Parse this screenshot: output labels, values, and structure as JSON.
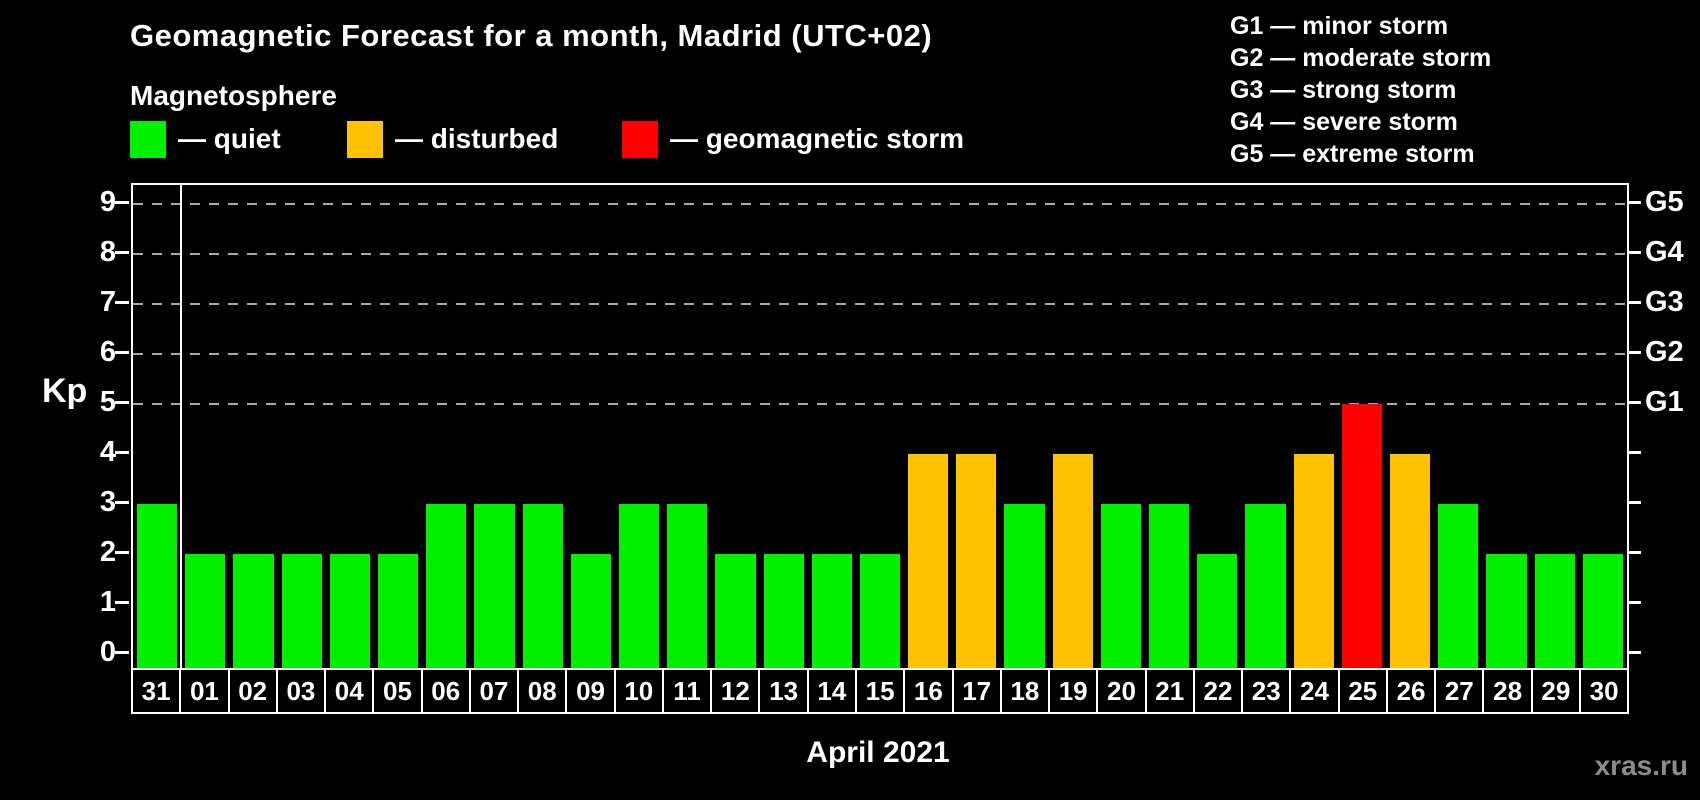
{
  "title": "Geomagnetic Forecast for a month, Madrid (UTC+02)",
  "subtitle": "Magnetosphere",
  "legend": {
    "items": [
      {
        "key": "quiet",
        "label": "— quiet",
        "color": "#00f000"
      },
      {
        "key": "disturbed",
        "label": "— disturbed",
        "color": "#ffc200"
      },
      {
        "key": "storm",
        "label": "— geomagnetic storm",
        "color": "#ff0000"
      }
    ]
  },
  "g_scale_legend": [
    "G1 — minor storm",
    "G2 — moderate storm",
    "G3 — strong storm",
    "G4 — severe storm",
    "G5 — extreme storm"
  ],
  "watermark": "xras.ru",
  "colors": {
    "quiet": "#00f000",
    "disturbed": "#ffc200",
    "storm": "#ff0000",
    "axis": "#ffffff",
    "grid": "#a8a8a8",
    "background": "#000000",
    "watermark": "#8c8c8c"
  },
  "chart_data": {
    "type": "bar",
    "title": "Geomagnetic Forecast for a month, Madrid (UTC+02)",
    "xlabel": "April 2021",
    "ylabel": "Kp",
    "ylim": [
      -0.32,
      9.38
    ],
    "yticks": [
      0,
      1,
      2,
      3,
      4,
      5,
      6,
      7,
      8,
      9
    ],
    "gridlines": [
      5,
      6,
      7,
      8,
      9
    ],
    "grid_style": "dashed",
    "legend_position": "top",
    "right_axis": [
      {
        "kp": 5,
        "label": "G1"
      },
      {
        "kp": 6,
        "label": "G2"
      },
      {
        "kp": 7,
        "label": "G3"
      },
      {
        "kp": 8,
        "label": "G4"
      },
      {
        "kp": 9,
        "label": "G5"
      }
    ],
    "categories": [
      "31",
      "01",
      "02",
      "03",
      "04",
      "05",
      "06",
      "07",
      "08",
      "09",
      "10",
      "11",
      "12",
      "13",
      "14",
      "15",
      "16",
      "17",
      "18",
      "19",
      "20",
      "21",
      "22",
      "23",
      "24",
      "25",
      "26",
      "27",
      "28",
      "29",
      "30"
    ],
    "values": [
      3,
      2,
      2,
      2,
      2,
      2,
      3,
      3,
      3,
      2,
      3,
      3,
      2,
      2,
      2,
      2,
      4,
      4,
      3,
      4,
      3,
      3,
      2,
      3,
      4,
      5,
      4,
      3,
      2,
      2,
      2
    ],
    "separator_after_index": 0,
    "color_rules": {
      "storm_min_kp": 5,
      "disturbed_kp": 4,
      "quiet_max_kp": 3
    }
  }
}
